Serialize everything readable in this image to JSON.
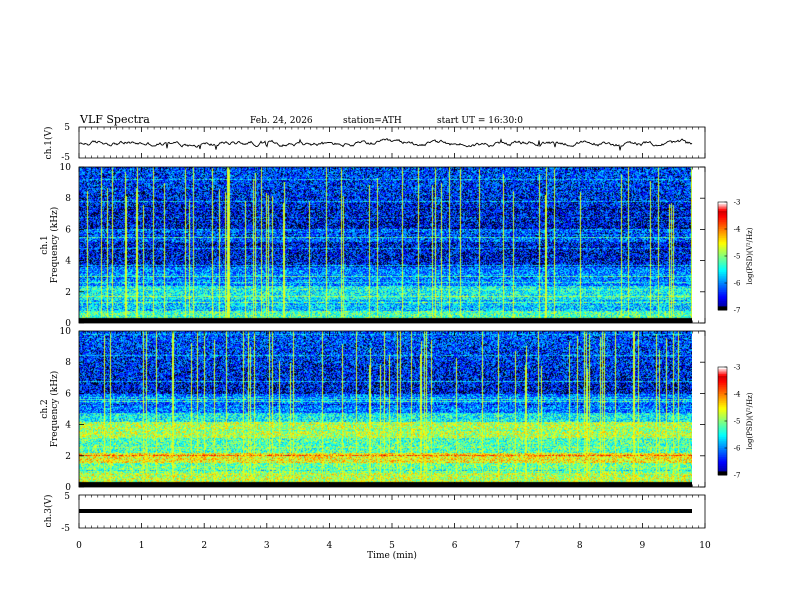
{
  "header": {
    "title": "VLF  Spectra",
    "date": "Feb. 24, 2026",
    "station": "station=ATH",
    "start": "start  UT  =   16:30:0"
  },
  "colors": {
    "axis": "#000000",
    "trace": "#000000",
    "background": "#ffffff"
  },
  "chart_data": [
    {
      "type": "line",
      "name": "ch1-waveform",
      "ylabel": "ch.1(V)",
      "ylim": [
        -5,
        5
      ],
      "yticks": [
        "5",
        "-5"
      ],
      "xlim": [
        0,
        10
      ]
    },
    {
      "type": "heatmap",
      "name": "ch1-spectrogram",
      "ylabel": "ch.1\nFrequency  (kHz)",
      "ylim": [
        0,
        10
      ],
      "yticks": [
        "0",
        "2",
        "4",
        "6",
        "8",
        "10"
      ],
      "xlim": [
        0,
        9.8
      ],
      "colorbar": {
        "label": "log(PSD)(V²/Hz)",
        "range": [
          -7,
          -3
        ],
        "ticks": [
          "-3",
          "-4",
          "-5",
          "-6",
          "-7"
        ]
      }
    },
    {
      "type": "heatmap",
      "name": "ch2-spectrogram",
      "ylabel": "ch.2\nFrequency  (kHz)",
      "ylim": [
        0,
        10
      ],
      "yticks": [
        "0",
        "2",
        "4",
        "6",
        "8",
        "10"
      ],
      "xlim": [
        0,
        9.8
      ],
      "colorbar": {
        "label": "log(PSD)(V²/Hz)",
        "range": [
          -7,
          -3
        ],
        "ticks": [
          "-3",
          "-4",
          "-5",
          "-6",
          "-7"
        ]
      }
    },
    {
      "type": "line",
      "name": "ch3-waveform",
      "ylabel": "ch.3(V)",
      "ylim": [
        -5,
        5
      ],
      "yticks": [
        "5",
        "-5"
      ],
      "xlim": [
        0,
        10
      ],
      "level": 0
    }
  ],
  "xaxis": {
    "label": "Time  (min)",
    "ticks": [
      "0",
      "1",
      "2",
      "3",
      "4",
      "5",
      "6",
      "7",
      "8",
      "9",
      "10"
    ]
  }
}
